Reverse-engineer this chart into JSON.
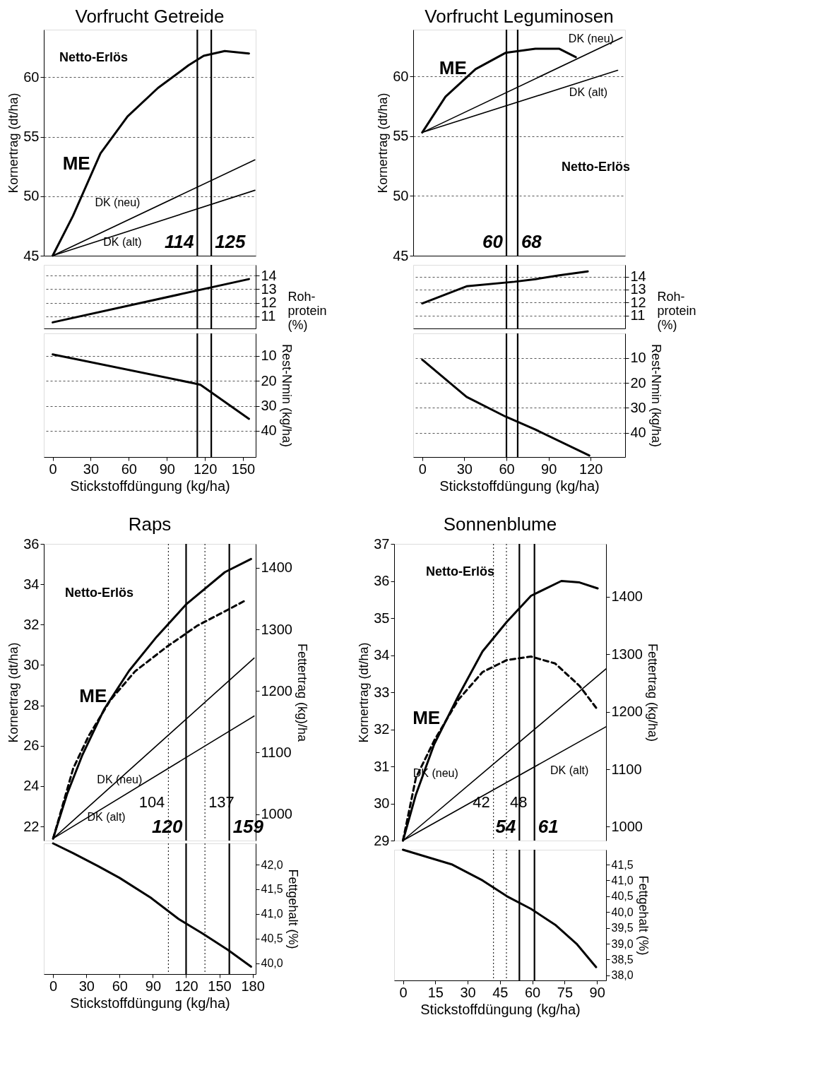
{
  "chart_data": [
    {
      "type": "line",
      "title": "Vorfrucht Getreide",
      "ylabel": "Kornertrag (dt/ha)",
      "xlim": [
        -7,
        160
      ],
      "ylim": [
        45,
        64
      ],
      "yticks": [
        45,
        50,
        55,
        60
      ],
      "grid": "y",
      "tick_labels": "y",
      "annotations": [
        "Netto-Erlös"
      ],
      "series": [
        {
          "name": "ME",
          "color": "#000000",
          "x": [
            0,
            16,
            37.7,
            59,
            83,
            107,
            119,
            135.6,
            154.7
          ],
          "values": [
            45,
            48.35,
            53.6,
            56.7,
            59.1,
            61.0,
            61.8,
            62.2,
            62.0
          ]
        },
        {
          "name": "DK (neu)",
          "color": "#000000",
          "x": [
            0,
            159.4
          ],
          "values": [
            45,
            53.06
          ]
        },
        {
          "name": "DK (alt)",
          "color": "#000000",
          "x": [
            0,
            159.4
          ],
          "values": [
            45,
            50.5
          ]
        }
      ],
      "ref_lines": [
        {
          "axis": "x",
          "value": 114,
          "label": "114"
        },
        {
          "axis": "x",
          "value": 125,
          "label": "125"
        }
      ]
    },
    {
      "type": "line",
      "ylabel": "Roh- protein (%)",
      "xlim": [
        -7,
        160
      ],
      "ylim": [
        10.1,
        14.8
      ],
      "yticks": [
        11,
        12,
        13,
        14
      ],
      "grid": "y",
      "tick_labels": "y",
      "series": [
        {
          "color": "#000000",
          "x": [
            0,
            154.7
          ],
          "values": [
            10.55,
            13.75
          ]
        }
      ],
      "ref_lines": [
        {
          "axis": "x",
          "value": 114
        },
        {
          "axis": "x",
          "value": 125
        }
      ]
    },
    {
      "type": "line",
      "xlabel": "Stickstoffdüngung (kg/ha)",
      "ylabel": "Rest-Nmin (kg/ha)",
      "xlim": [
        -7,
        160
      ],
      "xticks": [
        0,
        30,
        60,
        90,
        120,
        150
      ],
      "ylim": [
        50.5,
        1
      ],
      "yticks": [
        10,
        20,
        30,
        40
      ],
      "grid": "y",
      "series": [
        {
          "color": "#000000",
          "x": [
            0,
            111.7,
            116.5,
            154.7
          ],
          "values": [
            9.4,
            21.0,
            21.6,
            35.2
          ]
        }
      ],
      "ref_lines": [
        {
          "axis": "x",
          "value": 114
        },
        {
          "axis": "x",
          "value": 125
        }
      ]
    },
    {
      "type": "line",
      "title": "Vorfrucht Leguminosen",
      "ylabel": "Kornertrag (dt/ha)",
      "xlim": [
        -6.4,
        144.5
      ],
      "ylim": [
        45,
        63.9
      ],
      "yticks": [
        45,
        50,
        55,
        60
      ],
      "grid": "y",
      "tick_labels": "y",
      "annotations": [
        "Netto-Erlös"
      ],
      "series": [
        {
          "name": "ME",
          "color": "#000000",
          "x": [
            0,
            16.6,
            38,
            59.3,
            80.6,
            97.7,
            109.4
          ],
          "values": [
            55.3,
            58.3,
            60.6,
            61.96,
            62.3,
            62.3,
            61.6
          ]
        },
        {
          "name": "DK (neu)",
          "color": "#000000",
          "x": [
            0,
            142.4
          ],
          "values": [
            55.3,
            63.25
          ]
        },
        {
          "name": "DK (alt)",
          "color": "#000000",
          "x": [
            0,
            139.2
          ],
          "values": [
            55.3,
            60.5
          ]
        }
      ],
      "ref_lines": [
        {
          "axis": "x",
          "value": 60,
          "label": "60"
        },
        {
          "axis": "x",
          "value": 68,
          "label": "68"
        }
      ]
    },
    {
      "type": "line",
      "ylabel": "Roh- protein (%)",
      "xlim": [
        -6.4,
        144.5
      ],
      "ylim": [
        10.0,
        14.9
      ],
      "yticks": [
        11,
        12,
        13,
        14
      ],
      "grid": "y",
      "tick_labels": "y",
      "series": [
        {
          "color": "#000000",
          "x": [
            0,
            31.6,
            65.7,
            80.6,
            97.7,
            117.9
          ],
          "values": [
            11.93,
            13.25,
            13.6,
            13.8,
            14.1,
            14.4
          ]
        }
      ],
      "ref_lines": [
        {
          "axis": "x",
          "value": 60
        },
        {
          "axis": "x",
          "value": 68
        }
      ]
    },
    {
      "type": "line",
      "xlabel": "Stickstoffdüngung (kg/ha)",
      "ylabel": "Rest-Nmin (kg/ha)",
      "xlim": [
        -6.4,
        144.5
      ],
      "xticks": [
        0,
        30,
        60,
        90,
        120
      ],
      "ylim": [
        49.7,
        0.2
      ],
      "yticks": [
        10,
        20,
        30,
        40
      ],
      "grid": "y",
      "series": [
        {
          "color": "#000000",
          "x": [
            0,
            31.6,
            59.3,
            80.6,
            119
          ],
          "values": [
            10.7,
            25.6,
            33.5,
            38.7,
            49.1
          ]
        }
      ],
      "ref_lines": [
        {
          "axis": "x",
          "value": 60
        },
        {
          "axis": "x",
          "value": 68
        }
      ]
    },
    {
      "type": "line",
      "title": "Raps",
      "ylabel": "Kornertrag  (dt/ha)",
      "y2label": "Fettertrag (kg)/ha",
      "xlim": [
        -8.4,
        182.8
      ],
      "ylim": [
        21.3,
        36
      ],
      "yticks": [
        22,
        24,
        26,
        28,
        30,
        32,
        34,
        36
      ],
      "y2lim": [
        957,
        1439
      ],
      "y2ticks": [
        1000,
        1100,
        1200,
        1300,
        1400
      ],
      "tick_labels": "y",
      "annotations": [
        "Netto-Erlös"
      ],
      "series": [
        {
          "name": "ME",
          "color": "#000000",
          "x": [
            0,
            12.6,
            26.5,
            46,
            68.4,
            93.5,
            120,
            155,
            178.6
          ],
          "values": [
            21.4,
            23.6,
            25.55,
            27.8,
            29.7,
            31.4,
            33.0,
            34.6,
            35.25
          ]
        },
        {
          "name": "DK (neu)",
          "color": "#000000",
          "x": [
            0,
            181.4
          ],
          "values": [
            21.4,
            30.34
          ]
        },
        {
          "name": "DK (alt)",
          "color": "#000000",
          "x": [
            0,
            181.4
          ],
          "values": [
            21.4,
            27.47
          ]
        },
        {
          "color": "#000000",
          "axis": "y2",
          "line_style": "dashed",
          "x": [
            0,
            18.1,
            32.1,
            51.6,
            74,
            102,
            130,
            157.7,
            174.4
          ],
          "values": [
            960,
            1074,
            1127,
            1185,
            1232,
            1271,
            1306,
            1332,
            1348
          ]
        }
      ],
      "ref_lines": [
        {
          "axis": "x",
          "value": 104,
          "label": "104",
          "line_style": "dotted"
        },
        {
          "axis": "x",
          "value": 137,
          "label": "137",
          "line_style": "dotted"
        },
        {
          "axis": "x",
          "value": 120,
          "label": "120"
        },
        {
          "axis": "x",
          "value": 159,
          "label": "159"
        }
      ]
    },
    {
      "type": "line",
      "xlabel": "Stickstoffdüngung (kg/ha)",
      "ylabel": "Fettgehalt (%)",
      "xlim": [
        -8.4,
        182.8
      ],
      "xticks": [
        0,
        30,
        60,
        90,
        120,
        150,
        180
      ],
      "ylim": [
        39.78,
        42.43
      ],
      "yticks": [
        {
          "value": 40.0,
          "label": "40,0"
        },
        {
          "value": 40.5,
          "label": "40,5"
        },
        {
          "value": 41.0,
          "label": "41,0"
        },
        {
          "value": 41.5,
          "label": "41,5"
        },
        {
          "value": 42.0,
          "label": "42,0"
        }
      ],
      "series": [
        {
          "color": "#000000",
          "x": [
            0,
            18.1,
            40.5,
            60,
            88,
            113,
            135,
            157.7,
            178.6
          ],
          "values": [
            42.43,
            42.23,
            41.97,
            41.73,
            41.33,
            40.9,
            40.6,
            40.27,
            39.93
          ]
        }
      ],
      "ref_lines": [
        {
          "axis": "x",
          "value": 104,
          "line_style": "dotted"
        },
        {
          "axis": "x",
          "value": 137,
          "line_style": "dotted"
        },
        {
          "axis": "x",
          "value": 120
        },
        {
          "axis": "x",
          "value": 159
        }
      ]
    },
    {
      "type": "line",
      "title": "Sonnenblume",
      "ylabel": "Kornertrag (dt/ha)",
      "y2label": "Fettertrag (kg/ha)",
      "xlim": [
        -4.1,
        94.2
      ],
      "ylim": [
        29,
        37
      ],
      "yticks": [
        29,
        30,
        31,
        32,
        33,
        34,
        35,
        36,
        37
      ],
      "y2lim": [
        976,
        1492
      ],
      "y2ticks": [
        1000,
        1100,
        1200,
        1300,
        1400
      ],
      "tick_labels": "y",
      "annotations": [
        "Netto-Erlös"
      ],
      "series": [
        {
          "name": "ME",
          "color": "#000000",
          "x": [
            0,
            6,
            14.5,
            25.7,
            36.9,
            48.2,
            59.4,
            73.5,
            81.9,
            90.3
          ],
          "values": [
            29,
            30.24,
            31.6,
            32.9,
            34.1,
            34.9,
            35.6,
            36.0,
            35.96,
            35.8
          ]
        },
        {
          "name": "DK (neu)",
          "color": "#000000",
          "x": [
            0,
            94.2
          ],
          "values": [
            29,
            33.63
          ]
        },
        {
          "name": "DK (alt)",
          "color": "#000000",
          "x": [
            0,
            94.2
          ],
          "values": [
            29,
            32.07
          ]
        },
        {
          "color": "#000000",
          "axis": "y2",
          "line_style": "dashed",
          "x": [
            0,
            6,
            14.5,
            25.7,
            36.9,
            48.2,
            59.4,
            70.6,
            81.9,
            89.6
          ],
          "values": [
            976,
            1085,
            1150,
            1221,
            1269,
            1290,
            1296,
            1284,
            1245,
            1207
          ]
        }
      ],
      "ref_lines": [
        {
          "axis": "x",
          "value": 42,
          "label": "42",
          "line_style": "dotted"
        },
        {
          "axis": "x",
          "value": 48,
          "label": "48",
          "line_style": "dotted"
        },
        {
          "axis": "x",
          "value": 54,
          "label": "54"
        },
        {
          "axis": "x",
          "value": 61,
          "label": "61"
        }
      ]
    },
    {
      "type": "line",
      "xlabel": "Stickstoffdüngung (kg/ha)",
      "ylabel": "Fettgehalt (%)",
      "xlim": [
        -4.1,
        94.2
      ],
      "xticks": [
        0,
        15,
        30,
        45,
        60,
        75,
        90
      ],
      "ylim": [
        37.84,
        41.97
      ],
      "yticks": [
        {
          "value": 38.0,
          "label": "38,0"
        },
        {
          "value": 38.5,
          "label": "38,5"
        },
        {
          "value": 39.0,
          "label": "39,0"
        },
        {
          "value": 39.5,
          "label": "39,5"
        },
        {
          "value": 40.0,
          "label": "40,0"
        },
        {
          "value": 40.5,
          "label": "40,5"
        },
        {
          "value": 41.0,
          "label": "41,0"
        },
        {
          "value": 41.5,
          "label": "41,5"
        }
      ],
      "series": [
        {
          "color": "#000000",
          "x": [
            0,
            11.7,
            22.9,
            36.9,
            48.2,
            59.4,
            70.6,
            80.5,
            89.6
          ],
          "values": [
            41.97,
            41.73,
            41.5,
            41.0,
            40.5,
            40.1,
            39.6,
            39.0,
            38.26
          ]
        }
      ],
      "ref_lines": [
        {
          "axis": "x",
          "value": 42,
          "line_style": "dotted"
        },
        {
          "axis": "x",
          "value": 48,
          "line_style": "dotted"
        },
        {
          "axis": "x",
          "value": 54
        },
        {
          "axis": "x",
          "value": 61
        }
      ]
    }
  ]
}
